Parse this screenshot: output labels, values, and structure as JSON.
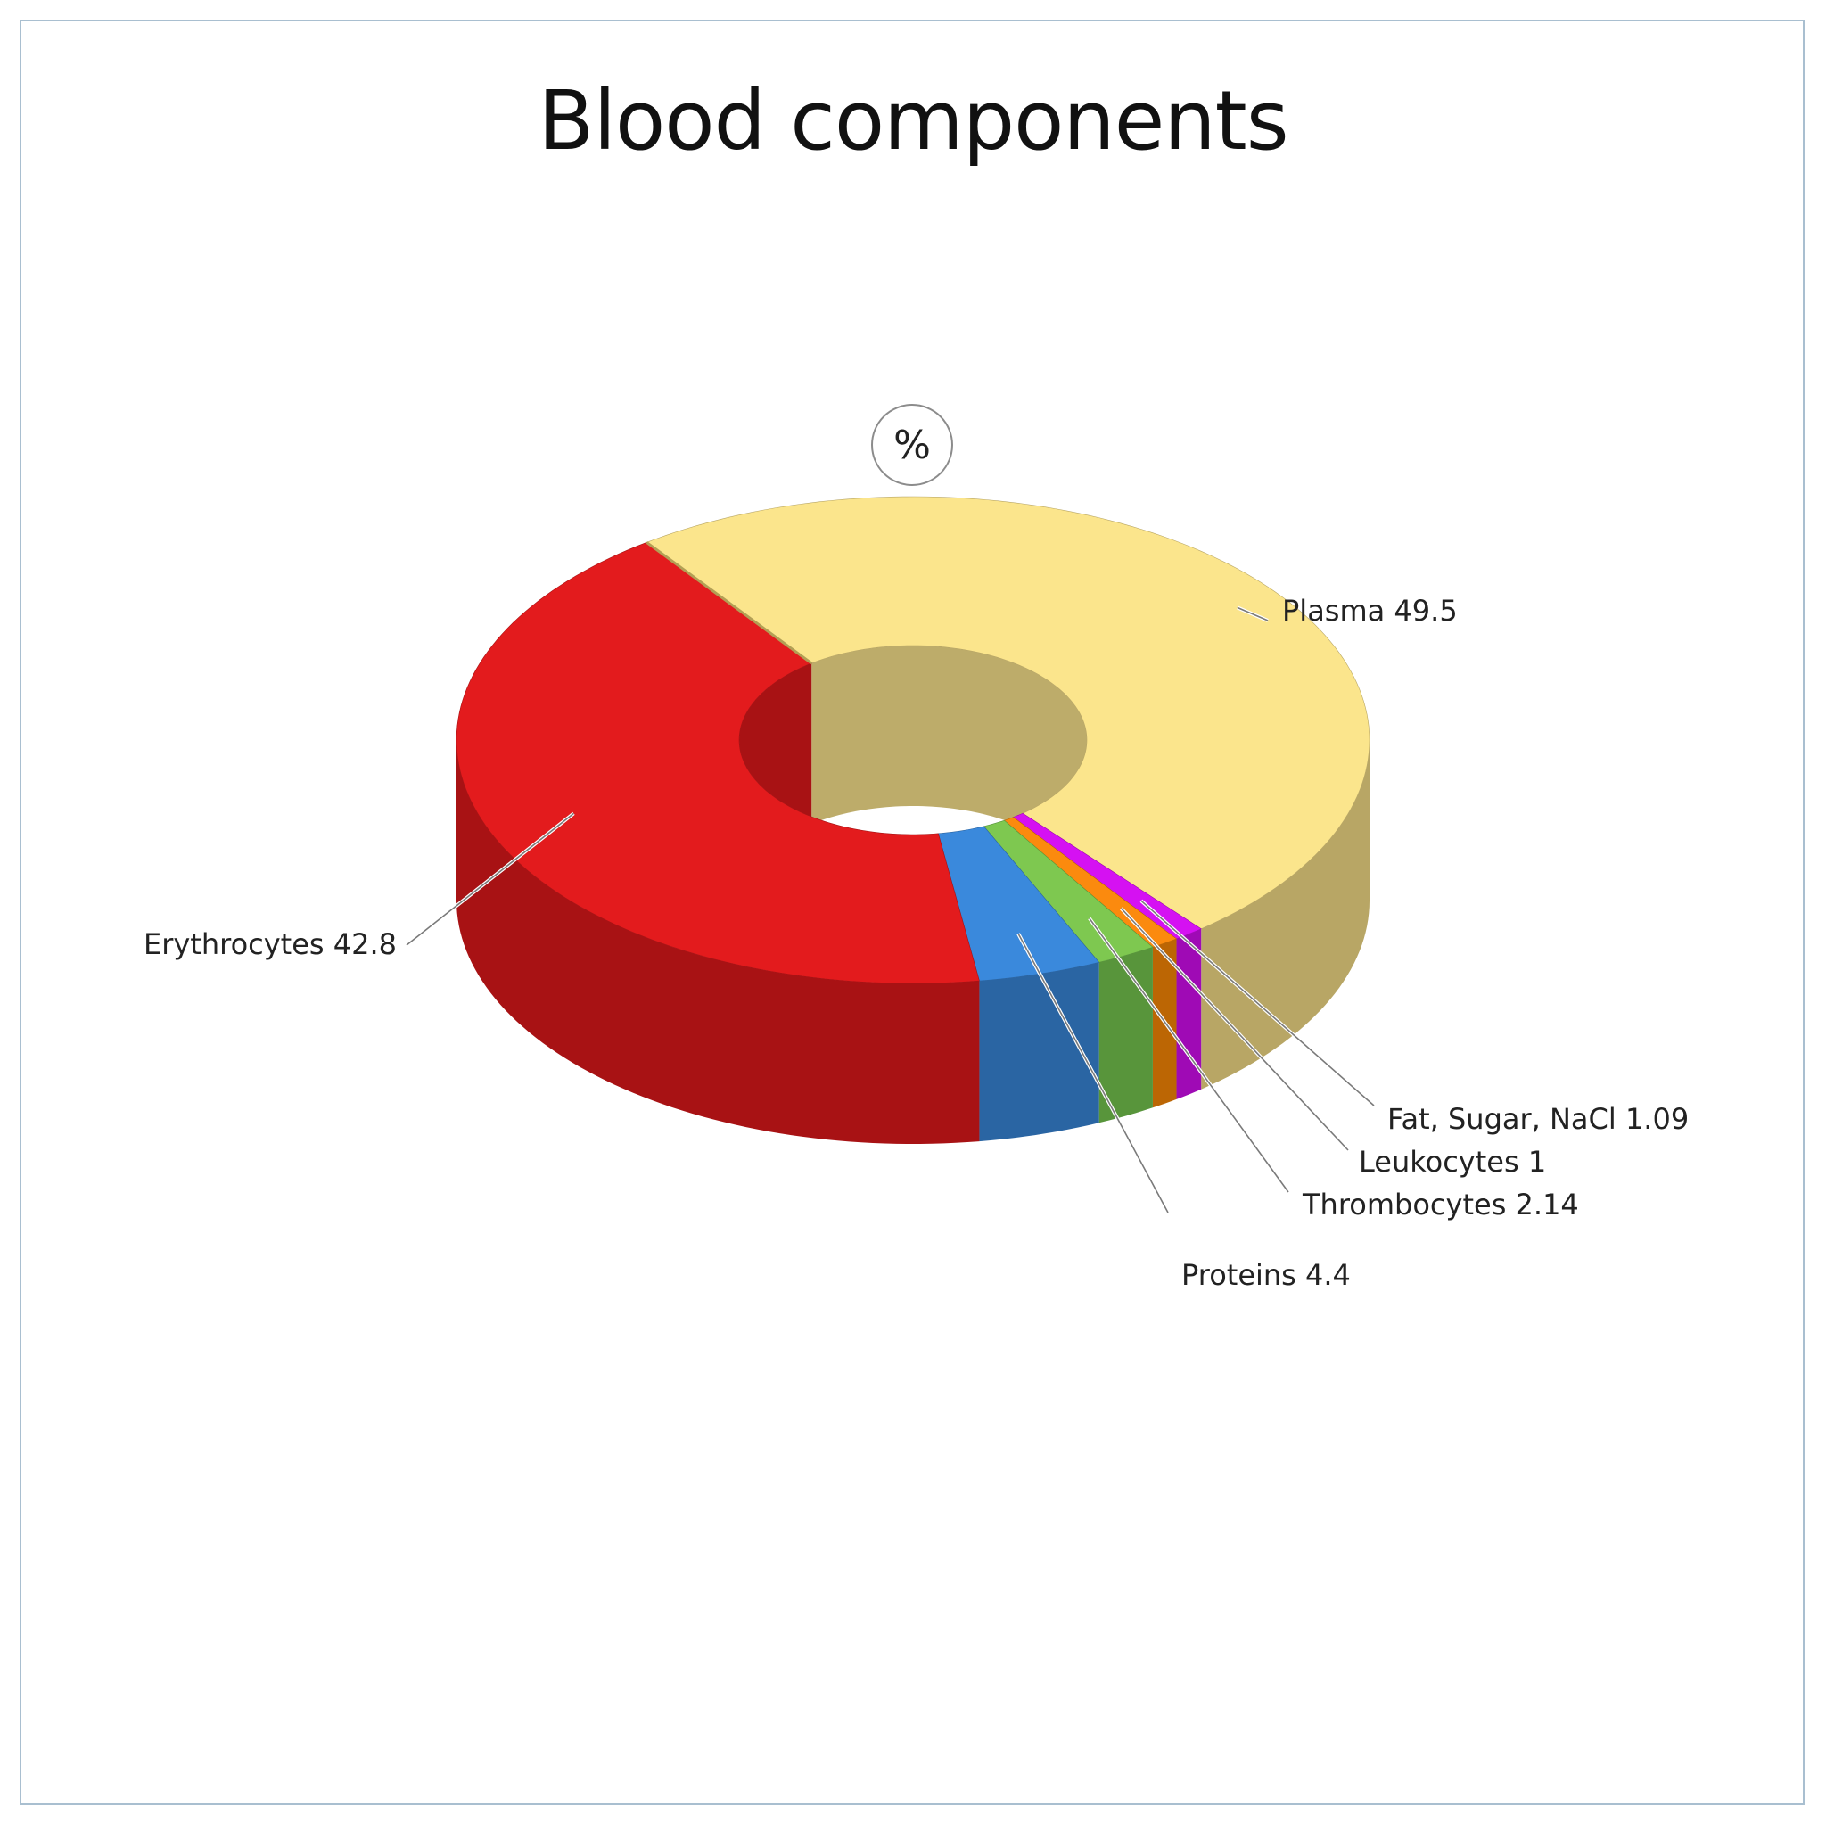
{
  "chart_data": {
    "type": "pie",
    "variant": "3d-donut",
    "title": "Blood components",
    "unit_label": "%",
    "slices": [
      {
        "label": "Plasma",
        "value": 49.5,
        "color": "#fbe58c",
        "side_color": "#b8a665",
        "inner_color": "#bdac6a"
      },
      {
        "label": "Fat, Sugar, NaCl",
        "value": 1.09,
        "color": "#d511f2",
        "side_color": "#9f0ab5",
        "inner_color": "#a40cbb"
      },
      {
        "label": "Leukocytes",
        "value": 1,
        "color": "#fb8a0e",
        "side_color": "#bc6604",
        "inner_color": "#c06a08"
      },
      {
        "label": "Thrombocytes",
        "value": 2.14,
        "color": "#7ec850",
        "side_color": "#58953b",
        "inner_color": "#5c9a3e"
      },
      {
        "label": "Proteins",
        "value": 4.4,
        "color": "#3a89dc",
        "side_color": "#2a65a3",
        "inner_color": "#2c68a8"
      },
      {
        "label": "Erythrocytes",
        "value": 42.8,
        "color": "#e31b1d",
        "side_color": "#a81214",
        "inner_color": "#a81214"
      }
    ]
  }
}
